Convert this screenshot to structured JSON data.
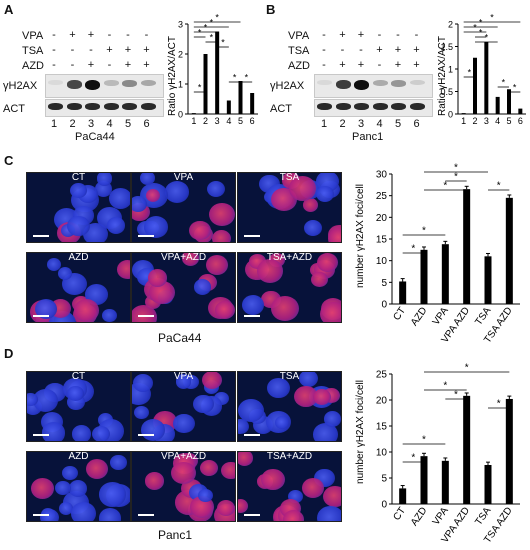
{
  "panels": {
    "A": {
      "letter": "A",
      "row_labels": [
        "VPA",
        "TSA",
        "AZD"
      ],
      "vpa_marks": [
        "-",
        "+",
        "+",
        "-",
        "-",
        "-"
      ],
      "tsa_marks": [
        "-",
        "-",
        "-",
        "+",
        "+",
        "+"
      ],
      "azd_marks": [
        "-",
        "-",
        "+",
        "-",
        "+",
        "+"
      ],
      "blot_labels": [
        "γH2AX",
        "ACT"
      ],
      "lanes": [
        "1",
        "2",
        "3",
        "4",
        "5",
        "6"
      ],
      "cell_line": "PaCa44"
    },
    "B": {
      "letter": "B",
      "row_labels": [
        "VPA",
        "TSA",
        "AZD"
      ],
      "vpa_marks": [
        "-",
        "+",
        "+",
        "-",
        "-",
        "-"
      ],
      "tsa_marks": [
        "-",
        "-",
        "-",
        "+",
        "+",
        "+"
      ],
      "azd_marks": [
        "-",
        "+",
        "+",
        "-",
        "+",
        "+"
      ],
      "blot_labels": [
        "γH2AX",
        "ACT"
      ],
      "lanes": [
        "1",
        "2",
        "3",
        "4",
        "5",
        "6"
      ],
      "cell_line": "Panc1"
    },
    "C": {
      "letter": "C",
      "images": [
        "CT",
        "VPA",
        "TSA",
        "AZD",
        "VPA+AZD",
        "TSA+AZD"
      ],
      "cell_line": "PaCa44"
    },
    "D": {
      "letter": "D",
      "images": [
        "CT",
        "VPA",
        "TSA",
        "AZD",
        "VPA+AZD",
        "TSA+AZD"
      ],
      "cell_line": "Panc1"
    }
  },
  "chart_data": [
    {
      "type": "bar",
      "panel": "A",
      "ylabel": "Ratio γH2AX/ACT",
      "categories": [
        "1",
        "2",
        "3",
        "4",
        "5",
        "6"
      ],
      "values": [
        0.03,
        2.0,
        2.75,
        0.45,
        1.1,
        0.7
      ],
      "ylim": [
        0,
        3
      ],
      "yticks": [
        "0",
        "1",
        "2",
        "3"
      ],
      "significance_marks": [
        "*",
        "*",
        "*",
        "*",
        "*",
        "*",
        "*",
        "*",
        "*"
      ]
    },
    {
      "type": "bar",
      "panel": "B",
      "ylabel": "Ratio γH2AX/ACT",
      "categories": [
        "1",
        "2",
        "3",
        "4",
        "5",
        "6"
      ],
      "values": [
        0.02,
        1.25,
        1.6,
        0.38,
        0.55,
        0.12
      ],
      "ylim": [
        0,
        2
      ],
      "yticks": [
        "0",
        "0.5",
        "1",
        "1.5",
        "2"
      ],
      "significance_marks": [
        "*",
        "*",
        "*",
        "*",
        "*",
        "*",
        "*",
        "*"
      ]
    },
    {
      "type": "bar",
      "panel": "C",
      "ylabel": "number γH2AX foci/cell",
      "categories": [
        "CT",
        "AZD",
        "VPA",
        "VPA AZD",
        "TSA",
        "TSA AZD"
      ],
      "values": [
        5.2,
        12.5,
        13.8,
        26.5,
        11.0,
        24.5
      ],
      "ylim": [
        0,
        30
      ],
      "yticks": [
        "0",
        "5",
        "10",
        "15",
        "20",
        "25",
        "30"
      ],
      "significance_marks": [
        "*",
        "*",
        "*",
        "*",
        "*",
        "*"
      ]
    },
    {
      "type": "bar",
      "panel": "D",
      "ylabel": "number γH2AX foci/cell",
      "categories": [
        "CT",
        "AZD",
        "VPA",
        "VPA AZD",
        "TSA",
        "TSA AZD"
      ],
      "values": [
        3.0,
        9.2,
        8.3,
        20.8,
        7.5,
        20.2
      ],
      "ylim": [
        0,
        25
      ],
      "yticks": [
        "0",
        "5",
        "10",
        "15",
        "20",
        "25"
      ],
      "significance_marks": [
        "*",
        "*",
        "*",
        "*",
        "*",
        "*"
      ]
    }
  ],
  "colors": {
    "bar": "#000000",
    "nucleus_blue": "#2a3fd0",
    "foci_red": "#d8203a",
    "background": "#07123a"
  }
}
